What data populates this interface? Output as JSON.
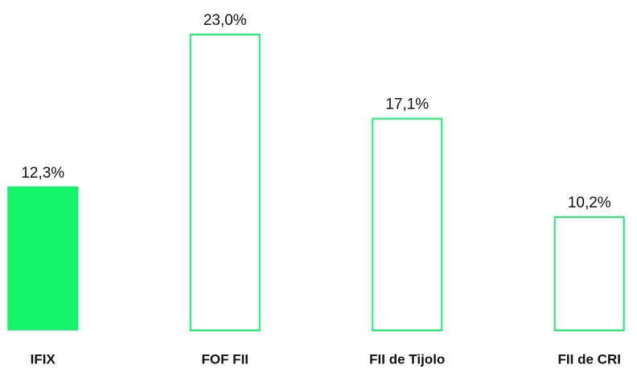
{
  "chart_data": {
    "type": "bar",
    "categories": [
      "IFIX",
      "FOF FII",
      "FII de Tijolo",
      "FII de CRI"
    ],
    "values": [
      12.3,
      23.0,
      17.1,
      10.2
    ],
    "value_labels": [
      "12,3%",
      "23,0%",
      "17,1%",
      "10,2%"
    ],
    "color": "#14f56c",
    "filled": [
      true,
      false,
      false,
      false
    ],
    "ylim": [
      2.2,
      23
    ]
  }
}
